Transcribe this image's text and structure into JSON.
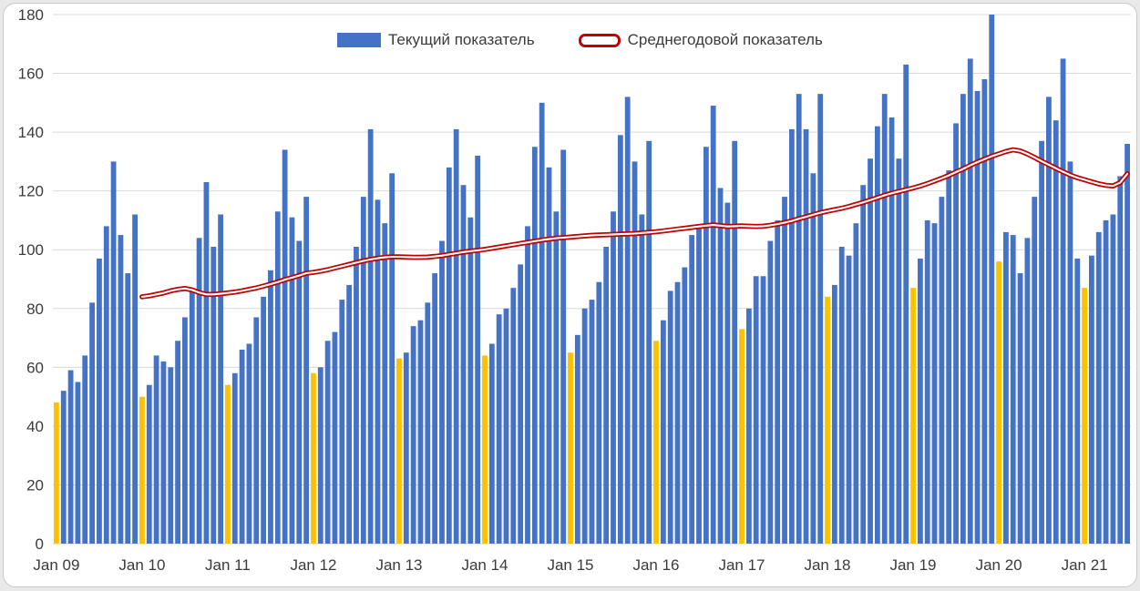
{
  "legend": {
    "current_label": "Текущий показатель",
    "average_label": "Среднегодовой показатель"
  },
  "colors": {
    "bar": "#4472C4",
    "bar_january": "#FFC000",
    "line": "#C00000",
    "line_inner": "#FFFFFF",
    "grid": "#D9D9D9",
    "text": "#3B3B3B"
  },
  "chart_data": {
    "type": "bar+line",
    "title": "",
    "xlabel": "",
    "ylabel": "",
    "ylim": [
      0,
      180
    ],
    "ytick_step": 20,
    "grid": "horizontal",
    "legend_position": "top-center",
    "start_month": "Jan 2009",
    "end_month": "Jul 2021",
    "x_tick_labels": [
      "Jan 09",
      "Jan 10",
      "Jan 11",
      "Jan 12",
      "Jan 13",
      "Jan 14",
      "Jan 15",
      "Jan 16",
      "Jan 17",
      "Jan 18",
      "Jan 19",
      "Jan 20",
      "Jan 21"
    ],
    "x_tick_every_n_bars": 12,
    "bar_series": {
      "name": "Текущий показатель",
      "january_highlighted": true,
      "values": [
        48,
        52,
        59,
        55,
        64,
        82,
        97,
        108,
        130,
        105,
        92,
        112,
        50,
        54,
        64,
        62,
        60,
        69,
        77,
        86,
        104,
        123,
        101,
        112,
        54,
        58,
        66,
        68,
        77,
        84,
        93,
        113,
        134,
        111,
        103,
        118,
        58,
        60,
        69,
        72,
        83,
        88,
        101,
        118,
        141,
        117,
        109,
        126,
        63,
        65,
        74,
        76,
        82,
        92,
        103,
        128,
        141,
        122,
        111,
        132,
        64,
        68,
        78,
        80,
        87,
        95,
        108,
        135,
        150,
        128,
        113,
        134,
        65,
        71,
        80,
        83,
        89,
        101,
        113,
        139,
        152,
        130,
        112,
        137,
        69,
        76,
        86,
        89,
        94,
        105,
        108,
        135,
        149,
        121,
        116,
        137,
        73,
        80,
        91,
        91,
        103,
        110,
        118,
        141,
        153,
        141,
        126,
        153,
        84,
        88,
        101,
        98,
        109,
        122,
        131,
        142,
        153,
        145,
        131,
        163,
        87,
        97,
        110,
        109,
        118,
        127,
        143,
        153,
        165,
        154,
        158,
        180,
        96,
        106,
        105,
        92,
        104,
        118,
        137,
        152,
        144,
        165,
        130,
        97,
        87,
        98,
        106,
        110,
        112,
        125,
        136
      ]
    },
    "line_series": {
      "name": "Среднегодовой показатель",
      "start_index": 12,
      "values": [
        84.0,
        84.3,
        84.8,
        85.3,
        86.0,
        86.5,
        86.8,
        86.3,
        85.4,
        84.8,
        84.8,
        85.0,
        85.3,
        85.6,
        86.0,
        86.5,
        87.0,
        87.6,
        88.3,
        89.0,
        89.8,
        90.5,
        91.2,
        92.0,
        92.3,
        92.7,
        93.2,
        93.8,
        94.4,
        95.0,
        95.6,
        96.2,
        96.7,
        97.1,
        97.4,
        97.6,
        97.6,
        97.5,
        97.4,
        97.4,
        97.5,
        97.7,
        98.0,
        98.4,
        98.8,
        99.2,
        99.5,
        99.8,
        100.1,
        100.5,
        100.9,
        101.3,
        101.7,
        102.1,
        102.5,
        102.9,
        103.3,
        103.6,
        103.9,
        104.1,
        104.3,
        104.5,
        104.7,
        104.9,
        105.0,
        105.1,
        105.2,
        105.3,
        105.4,
        105.5,
        105.7,
        105.9,
        106.1,
        106.4,
        106.7,
        107.0,
        107.3,
        107.6,
        107.9,
        108.2,
        108.4,
        108.2,
        107.9,
        108.0,
        108.1,
        108.0,
        107.9,
        108.0,
        108.3,
        108.7,
        109.2,
        109.8,
        110.5,
        111.2,
        111.9,
        112.6,
        113.1,
        113.6,
        114.1,
        114.7,
        115.4,
        116.1,
        116.9,
        117.7,
        118.5,
        119.2,
        119.8,
        120.4,
        121.0,
        121.7,
        122.5,
        123.4,
        124.3,
        125.3,
        126.4,
        127.5,
        128.7,
        129.8,
        130.8,
        131.8,
        132.6,
        133.4,
        134.0,
        133.6,
        132.6,
        131.4,
        130.1,
        128.9,
        127.7,
        126.5,
        125.4,
        124.5,
        123.8,
        123.1,
        122.4,
        121.9,
        121.7,
        122.8,
        125.8
      ]
    }
  }
}
